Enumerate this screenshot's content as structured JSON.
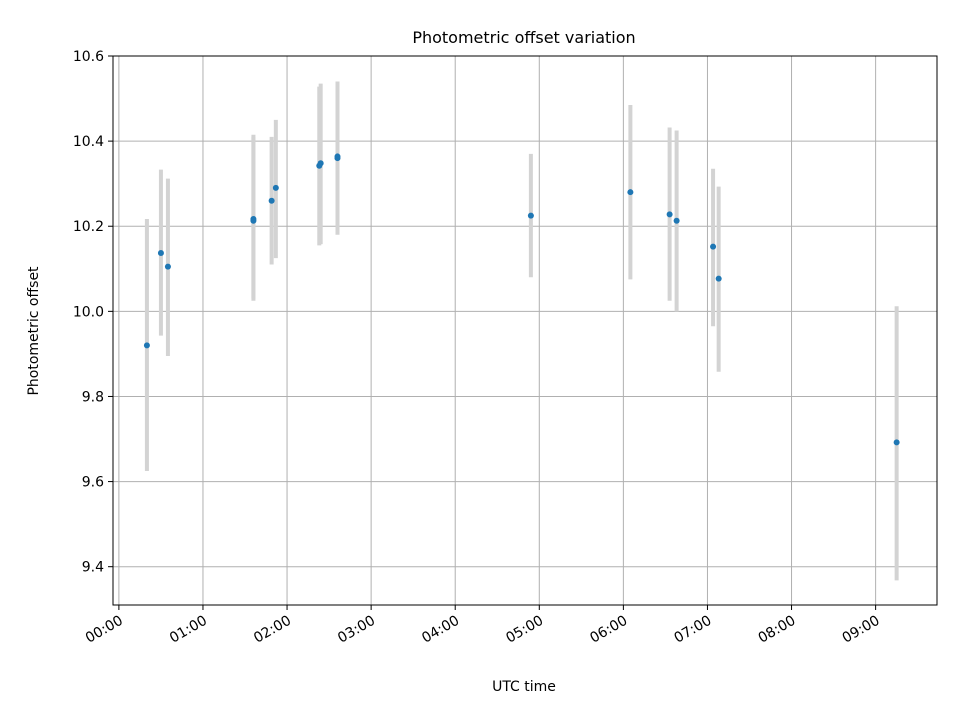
{
  "chart_data": {
    "type": "scatter",
    "title": "Photometric offset variation",
    "xlabel": "UTC time",
    "ylabel": "Photometric offset",
    "xlim_hours": [
      -0.07,
      9.73
    ],
    "ylim": [
      9.31,
      10.6
    ],
    "x_ticks_hours": [
      0,
      1,
      2,
      3,
      4,
      5,
      6,
      7,
      8,
      9
    ],
    "x_tick_labels": [
      "00:00",
      "01:00",
      "02:00",
      "03:00",
      "04:00",
      "05:00",
      "06:00",
      "07:00",
      "08:00",
      "09:00"
    ],
    "y_ticks": [
      9.4,
      9.6,
      9.8,
      10.0,
      10.2,
      10.4,
      10.6
    ],
    "y_tick_labels": [
      "9.4",
      "9.6",
      "9.8",
      "10.0",
      "10.2",
      "10.4",
      "10.6"
    ],
    "grid": true,
    "colors": {
      "point": "#1f77b4",
      "errorbar": "#d3d3d3",
      "grid": "#b0b0b0",
      "axes": "#000000"
    },
    "points": [
      {
        "time": "00:20",
        "y": 9.92,
        "ylow": 9.625,
        "yhigh": 10.217
      },
      {
        "time": "00:30",
        "y": 10.137,
        "ylow": 9.943,
        "yhigh": 10.333
      },
      {
        "time": "00:35",
        "y": 10.105,
        "ylow": 9.895,
        "yhigh": 10.312
      },
      {
        "time": "01:36",
        "y": 10.217,
        "ylow": 10.025,
        "yhigh": 10.415
      },
      {
        "time": "01:36",
        "y": 10.213,
        "ylow": 10.03,
        "yhigh": 10.41
      },
      {
        "time": "01:49",
        "y": 10.26,
        "ylow": 10.11,
        "yhigh": 10.41
      },
      {
        "time": "01:52",
        "y": 10.29,
        "ylow": 10.125,
        "yhigh": 10.45
      },
      {
        "time": "02:23",
        "y": 10.342,
        "ylow": 10.155,
        "yhigh": 10.528
      },
      {
        "time": "02:24",
        "y": 10.348,
        "ylow": 10.158,
        "yhigh": 10.535
      },
      {
        "time": "02:36",
        "y": 10.36,
        "ylow": 10.18,
        "yhigh": 10.54
      },
      {
        "time": "02:36",
        "y": 10.364,
        "ylow": 10.185,
        "yhigh": 10.535
      },
      {
        "time": "04:54",
        "y": 10.225,
        "ylow": 10.08,
        "yhigh": 10.37
      },
      {
        "time": "06:05",
        "y": 10.28,
        "ylow": 10.075,
        "yhigh": 10.485
      },
      {
        "time": "06:33",
        "y": 10.228,
        "ylow": 10.025,
        "yhigh": 10.432
      },
      {
        "time": "06:38",
        "y": 10.213,
        "ylow": 10.0,
        "yhigh": 10.425
      },
      {
        "time": "07:04",
        "y": 10.152,
        "ylow": 9.965,
        "yhigh": 10.335
      },
      {
        "time": "07:08",
        "y": 10.077,
        "ylow": 9.858,
        "yhigh": 10.293
      },
      {
        "time": "09:15",
        "y": 9.692,
        "ylow": 9.368,
        "yhigh": 10.012
      }
    ]
  }
}
